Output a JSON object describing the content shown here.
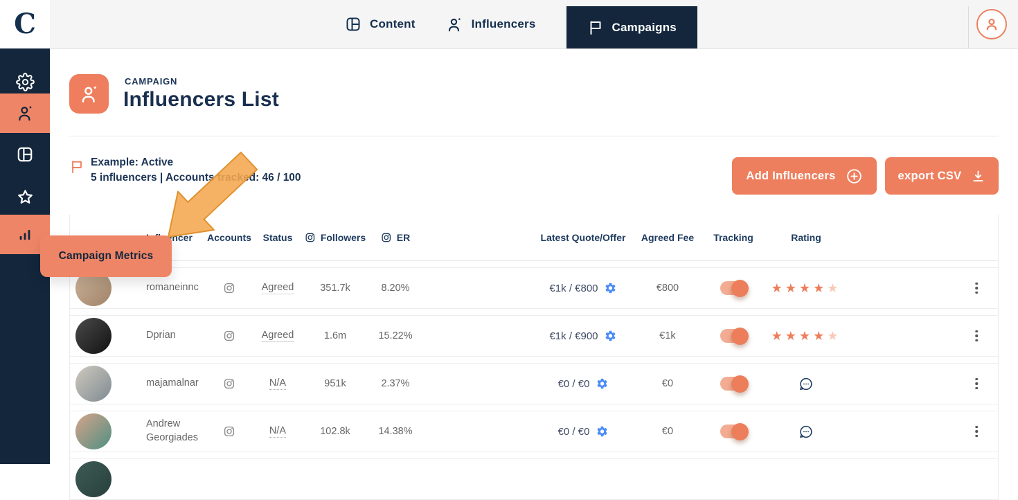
{
  "topbar": {
    "logo": "C",
    "tabs": [
      {
        "label": "Content",
        "icon": "content-grid-icon",
        "active": false
      },
      {
        "label": "Influencers",
        "icon": "influencer-icon",
        "active": false
      },
      {
        "label": "Campaigns",
        "icon": "flag-icon",
        "active": true
      }
    ]
  },
  "sidebar": {
    "items": [
      {
        "name": "settings",
        "icon": "gear-icon",
        "active": false
      },
      {
        "name": "influencers",
        "icon": "influencer-icon",
        "active": true
      },
      {
        "name": "content",
        "icon": "content-grid-icon",
        "active": false
      },
      {
        "name": "favorites",
        "icon": "star-icon",
        "active": false
      },
      {
        "name": "campaign-metrics",
        "icon": "bar-chart-icon",
        "active": true,
        "tooltip": "Campaign Metrics"
      }
    ]
  },
  "page": {
    "eyebrow": "CAMPAIGN",
    "title": "Influencers List"
  },
  "campaign": {
    "name_status": "Example: Active",
    "summary": "5 influencers | Accounts tracked: 46 / 100"
  },
  "actions": {
    "add_influencers": "Add Influencers",
    "export_csv": "export CSV"
  },
  "table": {
    "columns": [
      "Influencer",
      "Accounts",
      "Status",
      "Followers",
      "ER",
      "Latest Quote/Offer",
      "Agreed Fee",
      "Tracking",
      "Rating"
    ],
    "rows": [
      {
        "name": "romaneinnc",
        "account_icon": "instagram-icon",
        "status": "Agreed",
        "followers": "351.7k",
        "er": "8.20%",
        "quote": "€1k / €800",
        "agreed_fee": "€800",
        "tracking_on": true,
        "rating_type": "stars",
        "rating": 4,
        "avatar_colors": [
          "#cdb59b",
          "#a08368"
        ]
      },
      {
        "name": "Dprian",
        "account_icon": "instagram-icon",
        "status": "Agreed",
        "followers": "1.6m",
        "er": "15.22%",
        "quote": "€1k / €900",
        "agreed_fee": "€1k",
        "tracking_on": true,
        "rating_type": "stars",
        "rating": 4,
        "avatar_colors": [
          "#4a4a4a",
          "#121212"
        ]
      },
      {
        "name": "majamalnar",
        "account_icon": "instagram-icon",
        "status": "N/A",
        "followers": "951k",
        "er": "2.37%",
        "quote": "€0 / €0",
        "agreed_fee": "€0",
        "tracking_on": true,
        "rating_type": "comment",
        "avatar_colors": [
          "#cfc9bd",
          "#7e8a93"
        ]
      },
      {
        "name": "Andrew Georgiades",
        "account_icon": "instagram-icon",
        "status": "N/A",
        "followers": "102.8k",
        "er": "14.38%",
        "quote": "€0 / €0",
        "agreed_fee": "€0",
        "tracking_on": true,
        "rating_type": "comment",
        "avatar_colors": [
          "#d6a489",
          "#4f8f84"
        ]
      },
      {
        "partial": true,
        "avatar_colors": [
          "#3f5a55",
          "#27403c"
        ]
      }
    ]
  },
  "colors": {
    "accent_orange": "#ee7f5c",
    "highlight_orange": "#ef8567",
    "navy": "#13263c",
    "arrow_amber": "#f5a74f",
    "gear_blue": "#4a8cf7",
    "star_faded": "#f7cab8"
  }
}
